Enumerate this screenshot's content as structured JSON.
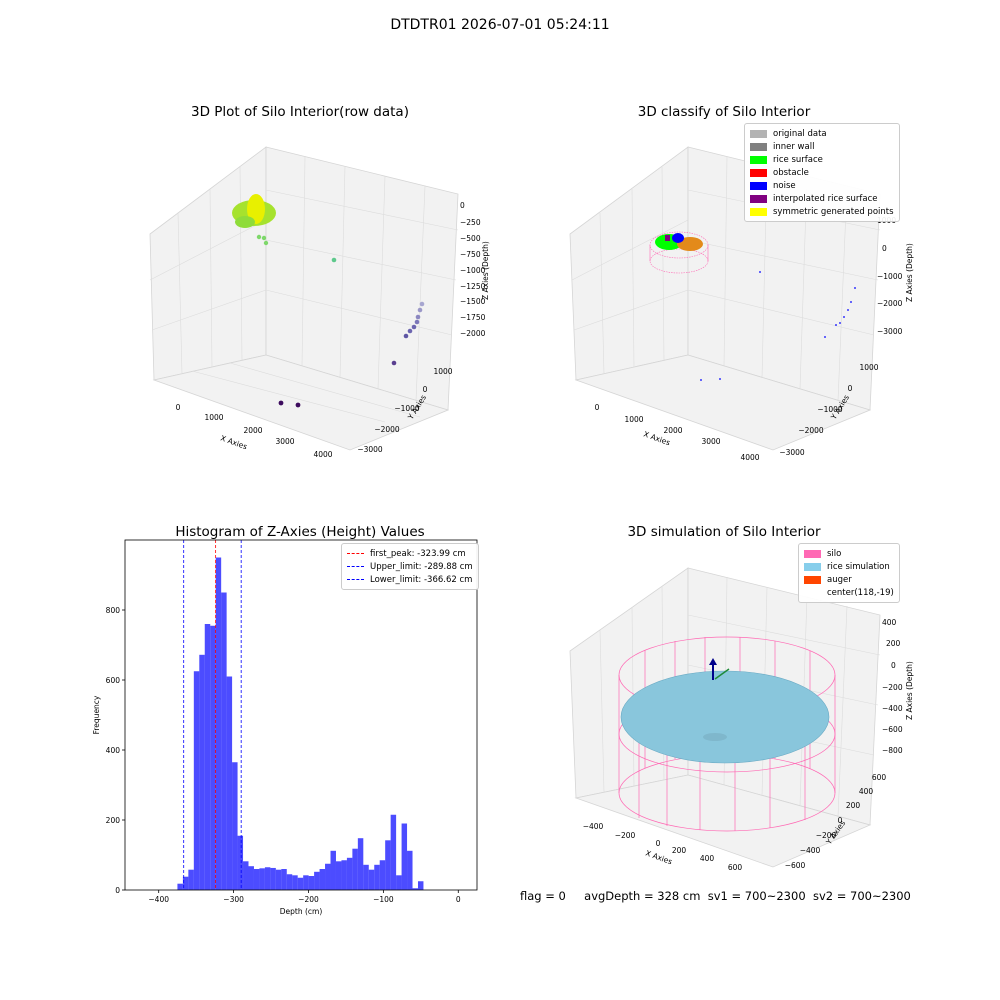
{
  "figure": {
    "title": "DTDTR01 2026-07-01 05:24:11"
  },
  "panels": {
    "raw": {
      "title": "3D Plot of Silo Interior(row data)",
      "xlabel": "X Axies",
      "ylabel": "Y Axies",
      "zlabel": "Z Axies (Depth)",
      "xticks": [
        "0",
        "1000",
        "2000",
        "3000",
        "4000"
      ],
      "yticks": [
        "1000",
        "0",
        "−1000",
        "−2000",
        "−3000"
      ],
      "zticks": [
        "0",
        "−250",
        "−500",
        "−750",
        "−1000",
        "−1250",
        "−1500",
        "−1750",
        "−2000"
      ]
    },
    "classify": {
      "title": "3D classify of Silo Interior",
      "xlabel": "X Axies",
      "ylabel": "Y Axies",
      "zlabel": "Z Axies (Depth)",
      "xticks": [
        "0",
        "1000",
        "2000",
        "3000",
        "4000"
      ],
      "yticks": [
        "1000",
        "0",
        "−1000",
        "−2000",
        "−3000"
      ],
      "zticks": [
        "1000",
        "0",
        "−1000",
        "−2000",
        "−3000"
      ],
      "legend": [
        {
          "label": "original data",
          "color": "#b3b3b3"
        },
        {
          "label": "inner wall",
          "color": "#808080"
        },
        {
          "label": "rice surface",
          "color": "#00ff00"
        },
        {
          "label": "obstacle",
          "color": "#ff0000"
        },
        {
          "label": "noise",
          "color": "#0000ff"
        },
        {
          "label": "interpolated rice surface",
          "color": "#800080"
        },
        {
          "label": "symmetric generated points",
          "color": "#ffff00"
        }
      ]
    },
    "simulation": {
      "title": "3D simulation of Silo Interior",
      "xlabel": "X Axies",
      "ylabel": "Y Axies",
      "zlabel": "Z Axies (Depth)",
      "xticks": [
        "−400",
        "−200",
        "0",
        "200",
        "400",
        "600"
      ],
      "yticks": [
        "600",
        "400",
        "200",
        "0",
        "−200",
        "−400",
        "−600"
      ],
      "zticks": [
        "400",
        "200",
        "0",
        "−200",
        "−400",
        "−600",
        "−800"
      ],
      "legend": [
        {
          "label": "silo",
          "color": "#ff69b4"
        },
        {
          "label": "rice simulation",
          "color": "#87ceeb"
        },
        {
          "label": "auger",
          "color": "#ff4500"
        },
        {
          "label": "center(118,-19)",
          "color": ""
        }
      ]
    }
  },
  "status": {
    "flag": "flag = 0",
    "avg_depth": "avgDepth = 328 cm",
    "sv1": "sv1 = 700~2300",
    "sv2": "sv2 = 700~2300"
  },
  "chart_data": {
    "type": "bar",
    "title": "Histogram of Z-Axies (Height) Values",
    "xlabel": "Depth (cm)",
    "ylabel": "Frequency",
    "xlim": [
      -445,
      25
    ],
    "ylim": [
      0,
      1000
    ],
    "xticks": [
      -400,
      -300,
      -200,
      -100,
      0
    ],
    "yticks": [
      0,
      200,
      400,
      600,
      800
    ],
    "bin_start": -375,
    "bin_width": 7.3,
    "bar_color": "#0000ff",
    "values": [
      18,
      38,
      58,
      625,
      672,
      760,
      755,
      950,
      850,
      610,
      365,
      155,
      82,
      68,
      60,
      62,
      65,
      63,
      58,
      60,
      45,
      42,
      35,
      42,
      40,
      52,
      60,
      75,
      112,
      82,
      85,
      92,
      118,
      148,
      72,
      58,
      72,
      85,
      142,
      215,
      42,
      190,
      112,
      5,
      25
    ],
    "lines": [
      {
        "label": "first_peak: -323.99 cm",
        "x": -323.99,
        "color": "#ff0000"
      },
      {
        "label": "Upper_limit: -289.88 cm",
        "x": -289.88,
        "color": "#0000ff"
      },
      {
        "label": "Lower_limit: -366.62 cm",
        "x": -366.62,
        "color": "#0000ff"
      }
    ],
    "legend_position": "top-right",
    "grid": false
  }
}
